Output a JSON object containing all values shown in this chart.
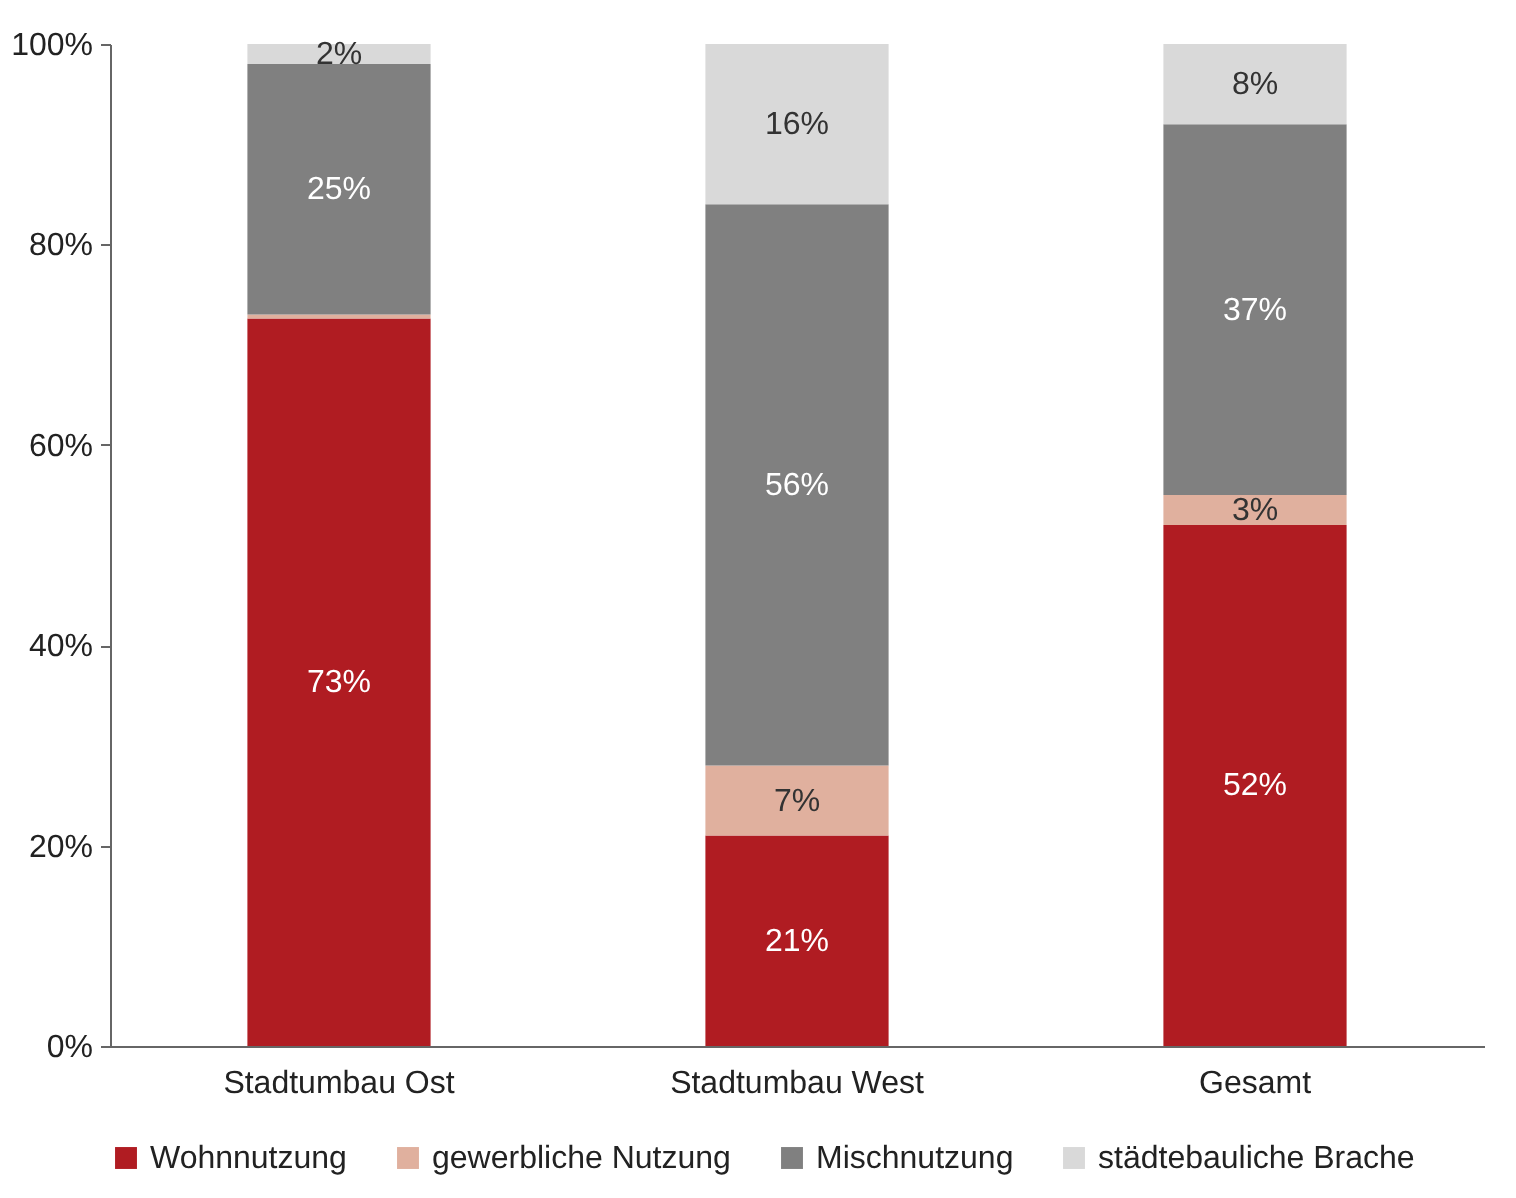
{
  "chart_data": {
    "type": "bar",
    "stacked": true,
    "categories": [
      "Stadtumbau Ost",
      "Stadtumbau West",
      "Gesamt"
    ],
    "series": [
      {
        "name": "Wohnnutzung",
        "color": "#b01c22",
        "values": [
          72.6,
          21,
          52
        ],
        "value_labels": [
          "73%",
          "21%",
          "52%"
        ]
      },
      {
        "name": "gewerbliche Nutzung",
        "color": "#e0b09e",
        "values": [
          0.4,
          7,
          3
        ],
        "value_labels": [
          null,
          "7%",
          "3%"
        ]
      },
      {
        "name": "Mischnutzung",
        "color": "#808080",
        "values": [
          25,
          56,
          37
        ],
        "value_labels": [
          "25%",
          "56%",
          "37%"
        ]
      },
      {
        "name": "städtebauliche Brache",
        "color": "#d9d9d9",
        "values": [
          2,
          16,
          8
        ],
        "value_labels": [
          "2%",
          "16%",
          "8%"
        ]
      }
    ],
    "ylim": [
      0,
      100
    ],
    "yticks": [
      {
        "value": 0,
        "label": "0%"
      },
      {
        "value": 20,
        "label": "20%"
      },
      {
        "value": 40,
        "label": "40%"
      },
      {
        "value": 60,
        "label": "60%"
      },
      {
        "value": 80,
        "label": "80%"
      },
      {
        "value": 100,
        "label": "100%"
      }
    ],
    "grid": false,
    "legend": "bottom"
  }
}
